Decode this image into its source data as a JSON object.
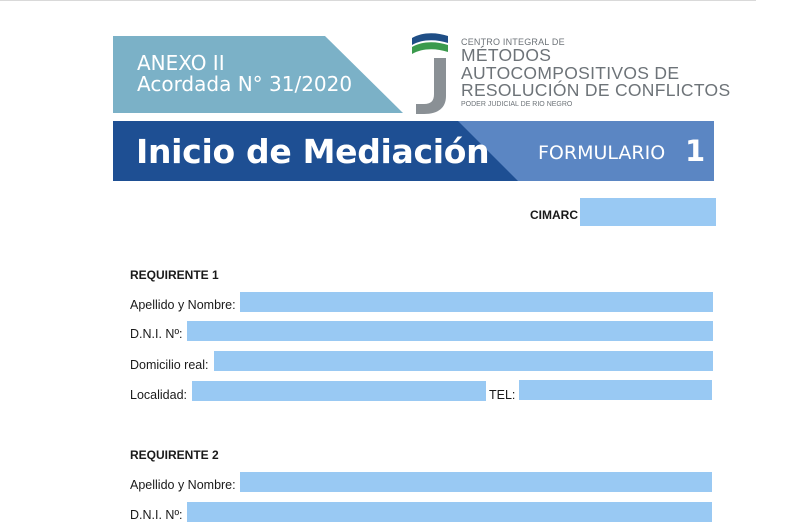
{
  "anexo": {
    "line1": "ANEXO II",
    "line2": "Acordada N° 31/2020"
  },
  "logo": {
    "line1": "CENTRO INTEGRAL DE",
    "line2": "MÉTODOS",
    "line3": "AUTOCOMPOSITIVOS DE",
    "line4": "RESOLUCIÓN DE CONFLICTOS",
    "line5": "PODER JUDICIAL DE RIO NEGRO"
  },
  "title": {
    "main": "Inicio de Mediación",
    "form_label": "FORMULARIO",
    "form_number": "1"
  },
  "cimarc": {
    "label": "CIMARC",
    "value": ""
  },
  "requirente1": {
    "title": "REQUIRENTE 1",
    "apellido_label": "Apellido y Nombre:",
    "dni_label": "D.N.I. Nº:",
    "domicilio_label": "Domicilio real:",
    "localidad_label": "Localidad:",
    "tel_label": "TEL:"
  },
  "requirente2": {
    "title": "REQUIRENTE 2",
    "apellido_label": "Apellido y Nombre:",
    "dni_label": "D.N.I. Nº:"
  },
  "colors": {
    "field_fill": "#99c9f3",
    "anexo_fill": "#7bb1c7",
    "band_dark": "#1e4f93",
    "band_light": "#5b86c3",
    "logo_green": "#3a9a4c",
    "logo_blue": "#1f4e86",
    "logo_gray": "#8a9095"
  }
}
